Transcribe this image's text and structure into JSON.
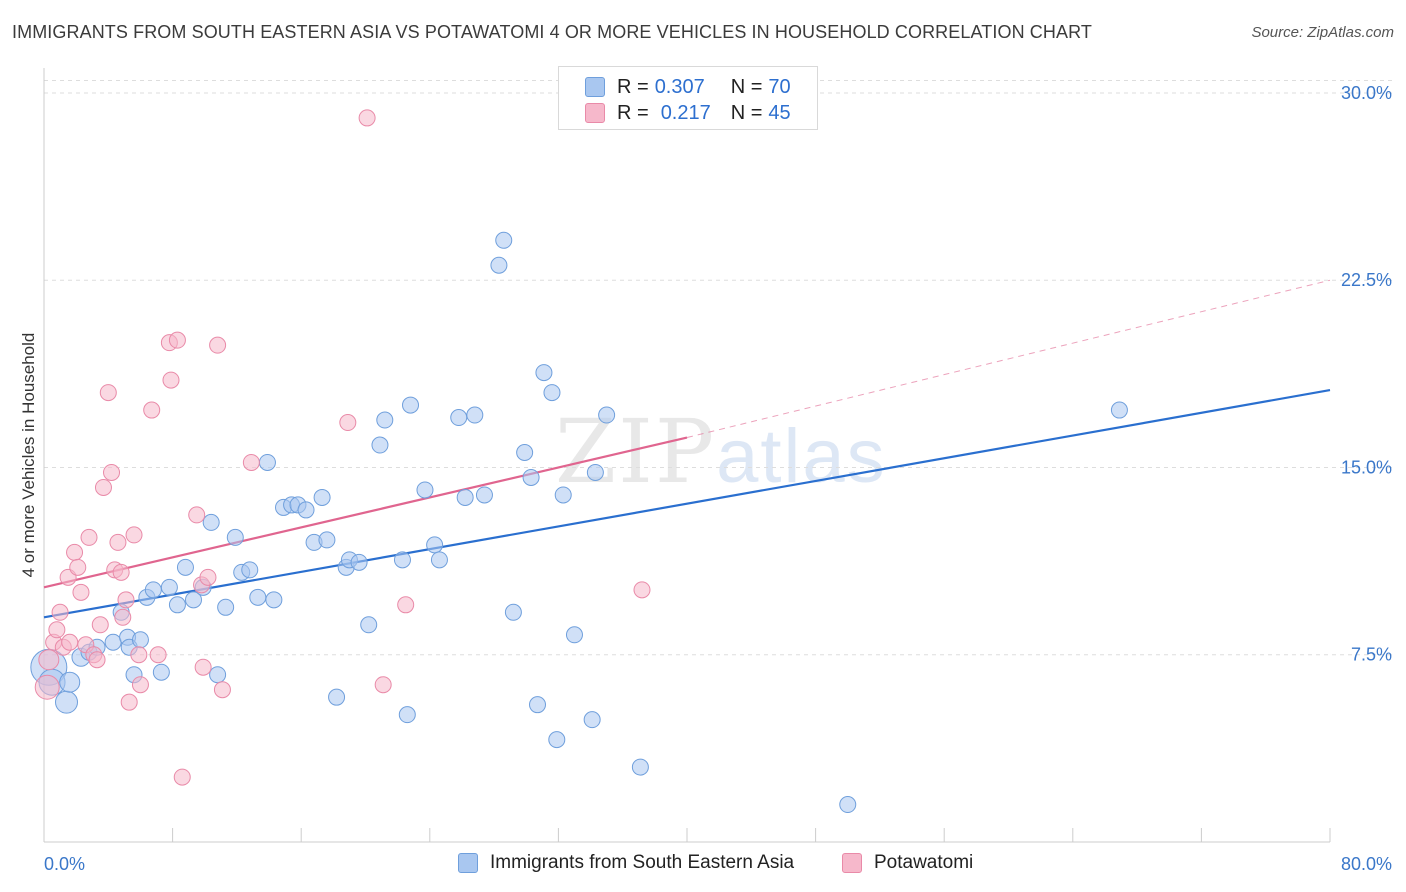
{
  "title": "IMMIGRANTS FROM SOUTH EASTERN ASIA VS POTAWATOMI 4 OR MORE VEHICLES IN HOUSEHOLD CORRELATION CHART",
  "source": "Source: ZipAtlas.com",
  "watermark": {
    "zip": "ZIP",
    "atlas": "atlas"
  },
  "colors": {
    "blue_fill": "#a9c7f0",
    "blue_stroke": "#6f9fdc",
    "blue_line": "#2a6fcf",
    "pink_fill": "#f6b8cb",
    "pink_stroke": "#e98aa8",
    "pink_line": "#e0658f",
    "grid": "#dddddd",
    "tick_text": "#3a77c9"
  },
  "legend_top": {
    "blue": {
      "r_label": "R =",
      "r_value": "0.307",
      "n_label": "N =",
      "n_value": "70"
    },
    "pink": {
      "r_label": "R =",
      "r_value": "0.217",
      "n_label": "N =",
      "n_value": "45"
    }
  },
  "legend_bottom": {
    "blue": "Immigrants from South Eastern Asia",
    "pink": "Potawatomi"
  },
  "chart_data": {
    "type": "scatter",
    "title": "IMMIGRANTS FROM SOUTH EASTERN ASIA VS POTAWATOMI 4 OR MORE VEHICLES IN HOUSEHOLD CORRELATION CHART",
    "xlabel": "",
    "ylabel": "4 or more Vehicles in Household",
    "xlim": [
      0,
      80
    ],
    "ylim": [
      0,
      31
    ],
    "x_tick_labels": {
      "0": "0.0%",
      "80": "80.0%"
    },
    "y_ticks": [
      7.5,
      15.0,
      22.5,
      30.0
    ],
    "y_tick_labels": [
      "7.5%",
      "15.0%",
      "22.5%",
      "30.0%"
    ],
    "x_minor_ticks": [
      0,
      8,
      16,
      24,
      32,
      40,
      48,
      56,
      64,
      72,
      80
    ],
    "series": [
      {
        "name": "Immigrants from South Eastern Asia",
        "color": "blue",
        "R": 0.307,
        "N": 70,
        "trend": {
          "x": [
            0,
            80
          ],
          "y": [
            9.0,
            18.1
          ]
        },
        "points": [
          [
            0.3,
            7.0,
            18
          ],
          [
            0.5,
            6.4,
            13
          ],
          [
            1.4,
            5.6,
            11
          ],
          [
            1.6,
            6.4,
            10
          ],
          [
            2.3,
            7.4,
            9
          ],
          [
            2.8,
            7.6,
            8
          ],
          [
            3.3,
            7.8,
            8
          ],
          [
            4.3,
            8.0,
            8
          ],
          [
            4.8,
            9.2,
            8
          ],
          [
            5.2,
            8.2,
            8
          ],
          [
            5.3,
            7.8,
            8
          ],
          [
            5.6,
            6.7,
            8
          ],
          [
            6.0,
            8.1,
            8
          ],
          [
            6.4,
            9.8,
            8
          ],
          [
            6.8,
            10.1,
            8
          ],
          [
            7.3,
            6.8,
            8
          ],
          [
            7.8,
            10.2,
            8
          ],
          [
            8.3,
            9.5,
            8
          ],
          [
            8.8,
            11.0,
            8
          ],
          [
            9.3,
            9.7,
            8
          ],
          [
            9.9,
            10.2,
            8
          ],
          [
            10.4,
            12.8,
            8
          ],
          [
            10.8,
            6.7,
            8
          ],
          [
            11.3,
            9.4,
            8
          ],
          [
            11.9,
            12.2,
            8
          ],
          [
            12.3,
            10.8,
            8
          ],
          [
            12.8,
            10.9,
            8
          ],
          [
            13.3,
            9.8,
            8
          ],
          [
            13.9,
            15.2,
            8
          ],
          [
            14.3,
            9.7,
            8
          ],
          [
            14.9,
            13.4,
            8
          ],
          [
            15.4,
            13.5,
            8
          ],
          [
            15.8,
            13.5,
            8
          ],
          [
            16.3,
            13.3,
            8
          ],
          [
            16.8,
            12.0,
            8
          ],
          [
            17.3,
            13.8,
            8
          ],
          [
            17.6,
            12.1,
            8
          ],
          [
            18.2,
            5.8,
            8
          ],
          [
            18.8,
            11.0,
            8
          ],
          [
            19.0,
            11.3,
            8
          ],
          [
            19.6,
            11.2,
            8
          ],
          [
            20.2,
            8.7,
            8
          ],
          [
            20.9,
            15.9,
            8
          ],
          [
            21.2,
            16.9,
            8
          ],
          [
            22.6,
            5.1,
            8
          ],
          [
            22.3,
            11.3,
            8
          ],
          [
            22.8,
            17.5,
            8
          ],
          [
            23.7,
            14.1,
            8
          ],
          [
            24.3,
            11.9,
            8
          ],
          [
            24.6,
            11.3,
            8
          ],
          [
            25.8,
            17.0,
            8
          ],
          [
            26.2,
            13.8,
            8
          ],
          [
            26.8,
            17.1,
            8
          ],
          [
            27.4,
            13.9,
            8
          ],
          [
            28.3,
            23.1,
            8
          ],
          [
            28.6,
            24.1,
            8
          ],
          [
            29.2,
            9.2,
            8
          ],
          [
            29.9,
            15.6,
            8
          ],
          [
            30.3,
            14.6,
            8
          ],
          [
            30.7,
            5.5,
            8
          ],
          [
            31.1,
            18.8,
            8
          ],
          [
            31.6,
            18.0,
            8
          ],
          [
            31.9,
            4.1,
            8
          ],
          [
            32.3,
            13.9,
            8
          ],
          [
            33.0,
            8.3,
            8
          ],
          [
            34.1,
            4.9,
            8
          ],
          [
            34.3,
            14.8,
            8
          ],
          [
            35.0,
            17.1,
            8
          ],
          [
            37.1,
            3.0,
            8
          ],
          [
            50.0,
            1.5,
            8
          ],
          [
            66.9,
            17.3,
            8
          ]
        ]
      },
      {
        "name": "Potawatomi",
        "color": "pink",
        "R": 0.217,
        "N": 45,
        "trend": {
          "x": [
            0,
            40
          ],
          "y": [
            10.2,
            16.2
          ]
        },
        "trend_extension": {
          "x": [
            40,
            80
          ],
          "y": [
            16.2,
            22.5
          ]
        },
        "points": [
          [
            0.2,
            6.2,
            12
          ],
          [
            0.3,
            7.3,
            10
          ],
          [
            0.6,
            8.0,
            8
          ],
          [
            0.8,
            8.5,
            8
          ],
          [
            1.0,
            9.2,
            8
          ],
          [
            1.2,
            7.8,
            8
          ],
          [
            1.5,
            10.6,
            8
          ],
          [
            1.6,
            8.0,
            8
          ],
          [
            1.9,
            11.6,
            8
          ],
          [
            2.1,
            11.0,
            8
          ],
          [
            2.3,
            10.0,
            8
          ],
          [
            2.6,
            7.9,
            8
          ],
          [
            2.8,
            12.2,
            8
          ],
          [
            3.1,
            7.5,
            8
          ],
          [
            3.3,
            7.3,
            8
          ],
          [
            3.5,
            8.7,
            8
          ],
          [
            3.7,
            14.2,
            8
          ],
          [
            4.0,
            18.0,
            8
          ],
          [
            4.2,
            14.8,
            8
          ],
          [
            4.4,
            10.9,
            8
          ],
          [
            4.6,
            12.0,
            8
          ],
          [
            4.8,
            10.8,
            8
          ],
          [
            4.9,
            9.0,
            8
          ],
          [
            5.1,
            9.7,
            8
          ],
          [
            5.3,
            5.6,
            8
          ],
          [
            5.6,
            12.3,
            8
          ],
          [
            5.9,
            7.5,
            8
          ],
          [
            6.0,
            6.3,
            8
          ],
          [
            6.7,
            17.3,
            8
          ],
          [
            7.1,
            7.5,
            8
          ],
          [
            7.8,
            20.0,
            8
          ],
          [
            7.9,
            18.5,
            8
          ],
          [
            8.3,
            20.1,
            8
          ],
          [
            8.6,
            2.6,
            8
          ],
          [
            9.5,
            13.1,
            8
          ],
          [
            9.8,
            10.3,
            8
          ],
          [
            9.9,
            7.0,
            8
          ],
          [
            10.2,
            10.6,
            8
          ],
          [
            10.8,
            19.9,
            8
          ],
          [
            11.1,
            6.1,
            8
          ],
          [
            12.9,
            15.2,
            8
          ],
          [
            18.9,
            16.8,
            8
          ],
          [
            20.1,
            29.0,
            8
          ],
          [
            21.1,
            6.3,
            8
          ],
          [
            22.5,
            9.5,
            8
          ],
          [
            37.2,
            10.1,
            8
          ]
        ]
      }
    ]
  }
}
